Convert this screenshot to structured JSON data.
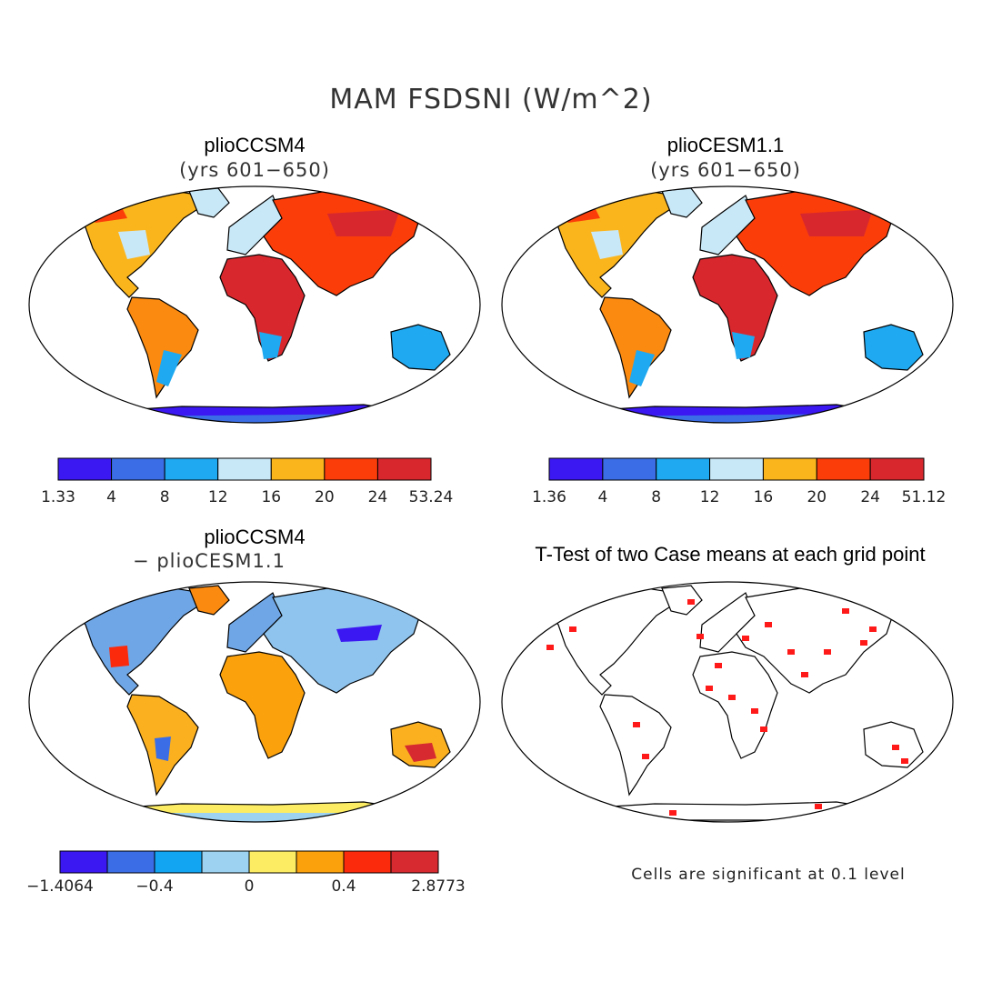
{
  "figure": {
    "title": "MAM FSDSNI (W/m^2)"
  },
  "panels": [
    {
      "title": "plioCCSM4",
      "subtitle": "(yrs 601−650)",
      "colorbar": {
        "colors": [
          "#3b18f2",
          "#3b6ee6",
          "#1fa9f0",
          "#c9e8f7",
          "#fbb51c",
          "#fb3d0a",
          "#d8282e"
        ],
        "labels": [
          "1.33",
          "4",
          "8",
          "12",
          "16",
          "20",
          "24",
          "53.24"
        ]
      }
    },
    {
      "title": "plioCESM1.1",
      "subtitle": "(yrs 601−650)",
      "colorbar": {
        "colors": [
          "#3b18f2",
          "#3b6ee6",
          "#1fa9f0",
          "#c9e8f7",
          "#fbb51c",
          "#fb3d0a",
          "#d8282e"
        ],
        "labels": [
          "1.36",
          "4",
          "8",
          "12",
          "16",
          "20",
          "24",
          "51.12"
        ]
      }
    },
    {
      "title": "plioCCSM4",
      "subtitle": "− plioCESM1.1",
      "colorbar": {
        "colors": [
          "#3b18f2",
          "#3b6ee6",
          "#12a5f2",
          "#9dd3f0",
          "#fcec63",
          "#fba10c",
          "#fb2a0d",
          "#d62a30"
        ],
        "labels": [
          "−1.4064",
          "−0.4",
          "0",
          "0.4",
          "2.8773"
        ]
      }
    },
    {
      "title": "T-Test of two Case means at each grid point",
      "note": "Cells are significant at 0.1 level",
      "dot_color": "#ff1a1a"
    }
  ]
}
